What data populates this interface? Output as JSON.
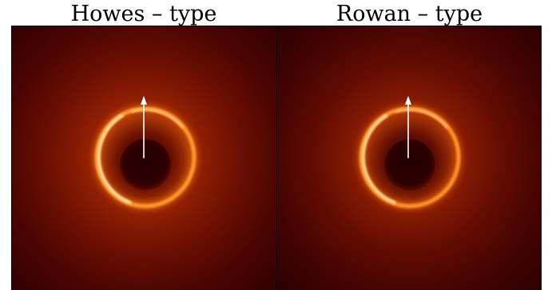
{
  "panels": [
    {
      "title": "Howes – type"
    },
    {
      "title": "Rowan – type"
    }
  ],
  "colors": {
    "background_dark": "#3a0002",
    "glow_mid": "#a32a05",
    "ring_core": "#ffd27a",
    "ring_orange": "#ff8a1e",
    "shadow": "#280001",
    "arrow": "#ffffff"
  },
  "icons": {
    "arrow": "up-arrow-icon"
  }
}
